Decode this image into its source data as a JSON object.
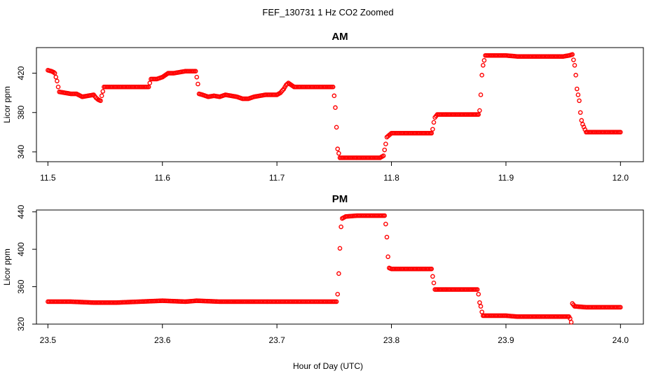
{
  "figure": {
    "title": "FEF_130731  1 Hz CO2 Zoomed",
    "xlabel": "Hour of Day (UTC)"
  },
  "chart_data": [
    {
      "type": "scatter",
      "title": "AM",
      "xlabel": "Hour of Day (UTC)",
      "ylabel": "Licor ppm",
      "xlim": [
        11.49,
        12.02
      ],
      "ylim": [
        330,
        446
      ],
      "xticks": [
        "11.5",
        "11.6",
        "11.7",
        "11.8",
        "11.9",
        "12.0"
      ],
      "yticks": [
        "340",
        "380",
        "420"
      ],
      "grid": false,
      "marker_color": "#ff0000",
      "series_points": [
        [
          11.5,
          423
        ],
        [
          11.503,
          422
        ],
        [
          11.505,
          421
        ],
        [
          11.506,
          420
        ],
        [
          11.507,
          416
        ],
        [
          11.508,
          412
        ],
        [
          11.509,
          406
        ],
        [
          11.51,
          401
        ],
        [
          11.515,
          400
        ],
        [
          11.52,
          399
        ],
        [
          11.525,
          399
        ],
        [
          11.53,
          396
        ],
        [
          11.535,
          397
        ],
        [
          11.54,
          398
        ],
        [
          11.542,
          395
        ],
        [
          11.544,
          393
        ],
        [
          11.546,
          392
        ],
        [
          11.547,
          397
        ],
        [
          11.549,
          406
        ],
        [
          11.552,
          406
        ],
        [
          11.56,
          406
        ],
        [
          11.57,
          406
        ],
        [
          11.58,
          406
        ],
        [
          11.588,
          406
        ],
        [
          11.59,
          414
        ],
        [
          11.595,
          414
        ],
        [
          11.6,
          416
        ],
        [
          11.605,
          420
        ],
        [
          11.61,
          420
        ],
        [
          11.615,
          421
        ],
        [
          11.62,
          422
        ],
        [
          11.625,
          422
        ],
        [
          11.629,
          422
        ],
        [
          11.63,
          416
        ],
        [
          11.631,
          409
        ],
        [
          11.632,
          399
        ],
        [
          11.635,
          398
        ],
        [
          11.64,
          396
        ],
        [
          11.645,
          397
        ],
        [
          11.65,
          396
        ],
        [
          11.655,
          398
        ],
        [
          11.66,
          397
        ],
        [
          11.665,
          396
        ],
        [
          11.67,
          394
        ],
        [
          11.675,
          394
        ],
        [
          11.68,
          396
        ],
        [
          11.685,
          397
        ],
        [
          11.69,
          398
        ],
        [
          11.695,
          398
        ],
        [
          11.7,
          398
        ],
        [
          11.703,
          400
        ],
        [
          11.706,
          404
        ],
        [
          11.708,
          408
        ],
        [
          11.71,
          410
        ],
        [
          11.715,
          406
        ],
        [
          11.72,
          406
        ],
        [
          11.73,
          406
        ],
        [
          11.74,
          406
        ],
        [
          11.749,
          406
        ],
        [
          11.75,
          397
        ],
        [
          11.751,
          385
        ],
        [
          11.752,
          365
        ],
        [
          11.753,
          343
        ],
        [
          11.755,
          334
        ],
        [
          11.76,
          334
        ],
        [
          11.77,
          334
        ],
        [
          11.78,
          334
        ],
        [
          11.79,
          334
        ],
        [
          11.793,
          336
        ],
        [
          11.794,
          342
        ],
        [
          11.795,
          348
        ],
        [
          11.796,
          355
        ],
        [
          11.8,
          359
        ],
        [
          11.81,
          359
        ],
        [
          11.82,
          359
        ],
        [
          11.83,
          359
        ],
        [
          11.835,
          359
        ],
        [
          11.836,
          363
        ],
        [
          11.837,
          370
        ],
        [
          11.838,
          375
        ],
        [
          11.84,
          378
        ],
        [
          11.85,
          378
        ],
        [
          11.86,
          378
        ],
        [
          11.87,
          378
        ],
        [
          11.876,
          378
        ],
        [
          11.877,
          382
        ],
        [
          11.878,
          398
        ],
        [
          11.879,
          418
        ],
        [
          11.88,
          428
        ],
        [
          11.882,
          438
        ],
        [
          11.89,
          438
        ],
        [
          11.9,
          438
        ],
        [
          11.91,
          437
        ],
        [
          11.92,
          437
        ],
        [
          11.93,
          437
        ],
        [
          11.94,
          437
        ],
        [
          11.95,
          437
        ],
        [
          11.955,
          438
        ],
        [
          11.958,
          439
        ],
        [
          11.96,
          428
        ],
        [
          11.961,
          418
        ],
        [
          11.962,
          404
        ],
        [
          11.963,
          398
        ],
        [
          11.964,
          392
        ],
        [
          11.965,
          380
        ],
        [
          11.966,
          372
        ],
        [
          11.967,
          368
        ],
        [
          11.97,
          360
        ],
        [
          11.98,
          360
        ],
        [
          11.99,
          360
        ],
        [
          12.0,
          360
        ]
      ]
    },
    {
      "type": "scatter",
      "title": "PM",
      "xlabel": "Hour of Day (UTC)",
      "ylabel": "Licor ppm",
      "xlim": [
        23.49,
        24.02
      ],
      "ylim": [
        320,
        442
      ],
      "xticks": [
        "23.5",
        "23.6",
        "23.7",
        "23.8",
        "23.9",
        "24.0"
      ],
      "yticks": [
        "320",
        "360",
        "400",
        "440"
      ],
      "grid": false,
      "marker_color": "#ff0000",
      "series_points": [
        [
          23.5,
          344
        ],
        [
          23.52,
          344
        ],
        [
          23.54,
          343
        ],
        [
          23.56,
          343
        ],
        [
          23.58,
          344
        ],
        [
          23.6,
          345
        ],
        [
          23.62,
          344
        ],
        [
          23.63,
          345
        ],
        [
          23.65,
          344
        ],
        [
          23.68,
          344
        ],
        [
          23.7,
          344
        ],
        [
          23.72,
          344
        ],
        [
          23.74,
          344
        ],
        [
          23.752,
          344
        ],
        [
          23.753,
          352
        ],
        [
          23.754,
          374
        ],
        [
          23.755,
          401
        ],
        [
          23.756,
          424
        ],
        [
          23.757,
          433
        ],
        [
          23.76,
          435
        ],
        [
          23.77,
          436
        ],
        [
          23.78,
          436
        ],
        [
          23.79,
          436
        ],
        [
          23.794,
          436
        ],
        [
          23.795,
          427
        ],
        [
          23.796,
          413
        ],
        [
          23.797,
          392
        ],
        [
          23.798,
          380
        ],
        [
          23.8,
          379
        ],
        [
          23.81,
          379
        ],
        [
          23.82,
          379
        ],
        [
          23.83,
          379
        ],
        [
          23.835,
          379
        ],
        [
          23.836,
          371
        ],
        [
          23.837,
          364
        ],
        [
          23.838,
          357
        ],
        [
          23.845,
          357
        ],
        [
          23.855,
          357
        ],
        [
          23.865,
          357
        ],
        [
          23.875,
          357
        ],
        [
          23.876,
          352
        ],
        [
          23.877,
          343
        ],
        [
          23.878,
          339
        ],
        [
          23.879,
          333
        ],
        [
          23.88,
          329
        ],
        [
          23.89,
          329
        ],
        [
          23.9,
          329
        ],
        [
          23.91,
          328
        ],
        [
          23.92,
          328
        ],
        [
          23.93,
          328
        ],
        [
          23.94,
          328
        ],
        [
          23.95,
          328
        ],
        [
          23.955,
          328
        ],
        [
          23.956,
          326
        ],
        [
          23.957,
          322
        ],
        [
          23.958,
          342
        ],
        [
          23.96,
          339
        ],
        [
          23.97,
          338
        ],
        [
          23.98,
          338
        ],
        [
          23.99,
          338
        ],
        [
          24.0,
          338
        ]
      ]
    }
  ]
}
